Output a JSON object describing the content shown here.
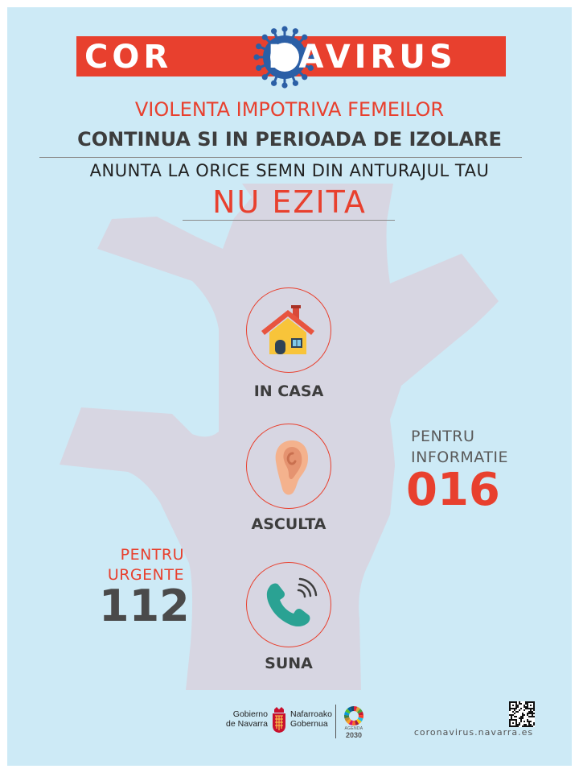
{
  "banner": {
    "left_text": "COR",
    "right_text": "NAVIRUS",
    "virus_icon": "coronavirus-icon"
  },
  "headline": {
    "line1": "VIOLENTA IMPOTRIVA FEMEILOR",
    "line2": "CONTINUA SI IN PERIOADA DE IZOLARE",
    "line3": "ANUNTA LA  ORICE SEMN DIN ANTURAJUL TAU",
    "line4": "NU  EZITA"
  },
  "steps": [
    {
      "icon": "house-icon",
      "label": "IN CASA"
    },
    {
      "icon": "ear-icon",
      "label": "ASCULTA"
    },
    {
      "icon": "phone-icon",
      "label": "SUNA"
    }
  ],
  "info": {
    "label_line1": "PENTRU",
    "label_line2": "INFORMATIE",
    "number": "016"
  },
  "urgent": {
    "label_line1": "PENTRU",
    "label_line2": "URGENTE",
    "number": "112"
  },
  "footer": {
    "gov_es_line1": "Gobierno",
    "gov_es_line2": "de Navarra",
    "gov_eu_line1": "Nafarroako",
    "gov_eu_line2": "Gobernua",
    "agenda_label": "AGENDA",
    "agenda_year": "2030",
    "url": "coronavirus.navarra.es"
  },
  "colors": {
    "background": "#cdeaf6",
    "accent_red": "#e8402e",
    "virus_blue": "#2b5fa6",
    "hand": "#d7d6e2",
    "text_dark": "#3d3d3d"
  }
}
